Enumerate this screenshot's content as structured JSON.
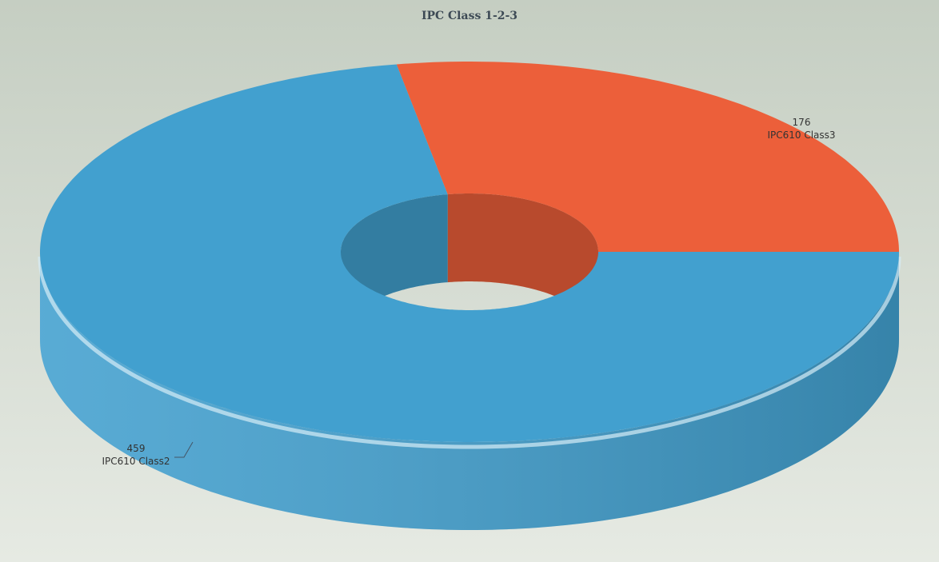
{
  "chart_data": {
    "type": "donut3d",
    "title": "IPC Class 1-2-3",
    "categories": [
      "IPC610 Class3",
      "IPC610 Class2"
    ],
    "values": [
      176,
      459
    ],
    "colors": [
      "#ec5f3a",
      "#42a0cf"
    ]
  }
}
